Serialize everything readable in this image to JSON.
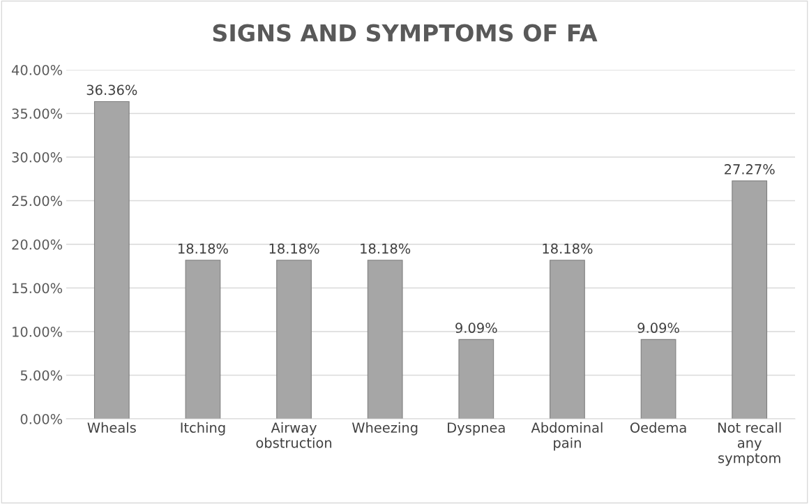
{
  "chart_data": {
    "type": "bar",
    "title": "SIGNS AND SYMPTOMS OF FA",
    "categories": [
      "Wheals",
      "Itching",
      "Airway obstruction",
      "Wheezing",
      "Dyspnea",
      "Abdominal pain",
      "Oedema",
      "Not recall any symptom"
    ],
    "values": [
      36.36,
      18.18,
      18.18,
      18.18,
      9.09,
      18.18,
      9.09,
      27.27
    ],
    "value_labels": [
      "36.36%",
      "18.18%",
      "18.18%",
      "18.18%",
      "9.09%",
      "18.18%",
      "9.09%",
      "27.27%"
    ],
    "color": "#a6a6a6",
    "ylim": [
      0,
      40
    ],
    "yticks": [
      {
        "value": 0,
        "label": "0.00%"
      },
      {
        "value": 5,
        "label": "5.00%"
      },
      {
        "value": 10,
        "label": "10.00%"
      },
      {
        "value": 15,
        "label": "15.00%"
      },
      {
        "value": 20,
        "label": "20.00%"
      },
      {
        "value": 25,
        "label": "25.00%"
      },
      {
        "value": 30,
        "label": "30.00%"
      },
      {
        "value": 35,
        "label": "35.00%"
      },
      {
        "value": 40,
        "label": "40.00%"
      }
    ],
    "grid": "y"
  }
}
